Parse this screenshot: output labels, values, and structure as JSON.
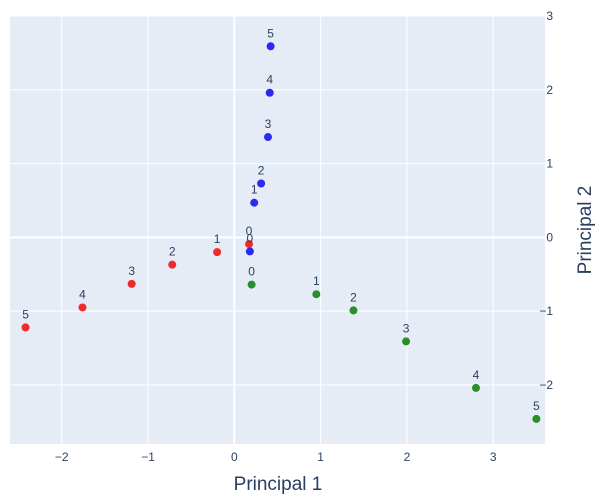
{
  "chart_data": {
    "type": "scatter",
    "xlabel": "Principal 1",
    "ylabel": "Principal 2",
    "xlim": [
      -2.6,
      3.6
    ],
    "ylim": [
      -2.8,
      3.0
    ],
    "x_ticks": [
      {
        "value": -2,
        "label": "−2"
      },
      {
        "value": -1,
        "label": "−1"
      },
      {
        "value": 0,
        "label": "0"
      },
      {
        "value": 1,
        "label": "1"
      },
      {
        "value": 2,
        "label": "2"
      },
      {
        "value": 3,
        "label": "3"
      }
    ],
    "y_ticks": [
      {
        "value": -2,
        "label": "−2"
      },
      {
        "value": -1,
        "label": "−1"
      },
      {
        "value": 0,
        "label": "0"
      },
      {
        "value": 1,
        "label": "1"
      },
      {
        "value": 2,
        "label": "2"
      },
      {
        "value": 3,
        "label": "3"
      }
    ],
    "y_axis_side": "right",
    "grid": true,
    "plot_background": "#e5ecf6",
    "series": [
      {
        "color": "#f02a2a",
        "points": [
          {
            "x": 0.17,
            "y": -0.09,
            "label": "0"
          },
          {
            "x": -0.2,
            "y": -0.2,
            "label": "1"
          },
          {
            "x": -0.72,
            "y": -0.37,
            "label": "2"
          },
          {
            "x": -1.19,
            "y": -0.63,
            "label": "3"
          },
          {
            "x": -1.76,
            "y": -0.95,
            "label": "4"
          },
          {
            "x": -2.42,
            "y": -1.22,
            "label": "5"
          }
        ]
      },
      {
        "color": "#2a2af0",
        "points": [
          {
            "x": 0.18,
            "y": -0.19,
            "label": "0"
          },
          {
            "x": 0.23,
            "y": 0.47,
            "label": "1"
          },
          {
            "x": 0.31,
            "y": 0.73,
            "label": "2"
          },
          {
            "x": 0.39,
            "y": 1.36,
            "label": "3"
          },
          {
            "x": 0.41,
            "y": 1.96,
            "label": "4"
          },
          {
            "x": 0.42,
            "y": 2.59,
            "label": "5"
          }
        ]
      },
      {
        "color": "#2a8f2a",
        "points": [
          {
            "x": 0.2,
            "y": -0.64,
            "label": "0"
          },
          {
            "x": 0.95,
            "y": -0.77,
            "label": "1"
          },
          {
            "x": 1.38,
            "y": -0.99,
            "label": "2"
          },
          {
            "x": 1.99,
            "y": -1.41,
            "label": "3"
          },
          {
            "x": 2.8,
            "y": -2.04,
            "label": "4"
          },
          {
            "x": 3.5,
            "y": -2.46,
            "label": "5"
          }
        ]
      }
    ]
  }
}
